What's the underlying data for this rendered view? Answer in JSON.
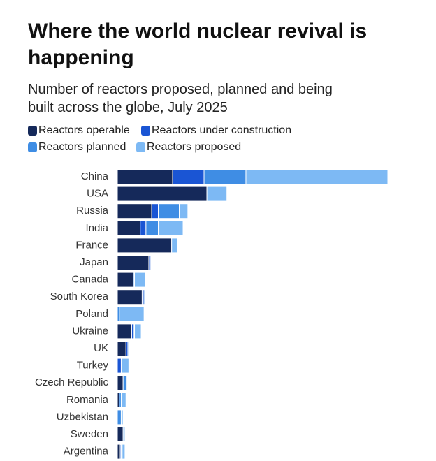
{
  "chart_data": {
    "type": "stacked-bar",
    "title": "Where the world nuclear revival is happening",
    "subtitle": "Number of reactors proposed, planned and being built across the globe, July 2025",
    "categories": [
      "China",
      "USA",
      "Russia",
      "India",
      "France",
      "Japan",
      "Canada",
      "South Korea",
      "Poland",
      "Ukraine",
      "UK",
      "Turkey",
      "Czech Republic",
      "Romania",
      "Uzbekistan",
      "Sweden",
      "Argentina"
    ],
    "series": [
      {
        "name": "Reactors operable",
        "color": "#15295a",
        "values": [
          58,
          94,
          36,
          24,
          57,
          33,
          17,
          26,
          0,
          15,
          9,
          0,
          6,
          2,
          0,
          6,
          3
        ]
      },
      {
        "name": "Reactors under construction",
        "color": "#1a55d4",
        "values": [
          33,
          0,
          7,
          6,
          0,
          2,
          0,
          2,
          0,
          2,
          2,
          4,
          0,
          0,
          0,
          0,
          1
        ]
      },
      {
        "name": "Reactors planned",
        "color": "#3f8de4",
        "values": [
          44,
          0,
          22,
          13,
          0,
          0,
          1,
          1,
          2,
          1,
          0,
          0,
          4,
          2,
          4,
          0,
          1
        ]
      },
      {
        "name": "Reactors proposed",
        "color": "#7db9f4",
        "values": [
          149,
          21,
          9,
          26,
          6,
          0,
          11,
          0,
          26,
          7,
          1,
          8,
          0,
          5,
          2,
          2,
          3
        ]
      }
    ]
  }
}
